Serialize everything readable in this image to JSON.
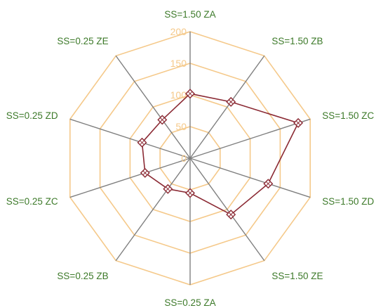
{
  "chart_data": {
    "type": "radar",
    "categories": [
      "SS=1.50 ZA",
      "SS=1.50 ZB",
      "SS=1.50 ZC",
      "SS=1.50 ZD",
      "SS=1.50 ZE",
      "SS=0.25 ZA",
      "SS=0.25 ZB",
      "SS=0.25 ZC",
      "SS=0.25 ZD",
      "SS=0.25 ZE"
    ],
    "series": [
      {
        "values": [
          102,
          110,
          180,
          130,
          110,
          55,
          60,
          75,
          80,
          75
        ]
      }
    ],
    "rlim": [
      0,
      200
    ],
    "ticks": [
      "0",
      "50",
      "100",
      "150",
      "200"
    ],
    "tick_values": [
      0,
      50,
      100,
      150,
      200
    ],
    "grid": true,
    "legend": "none",
    "colors": {
      "grid": "#f5c98a",
      "spokes": "#7f7f7f",
      "series": "#8b2a34",
      "category_labels": "#3d7a2a",
      "tick_labels": "#f5c98a"
    }
  }
}
